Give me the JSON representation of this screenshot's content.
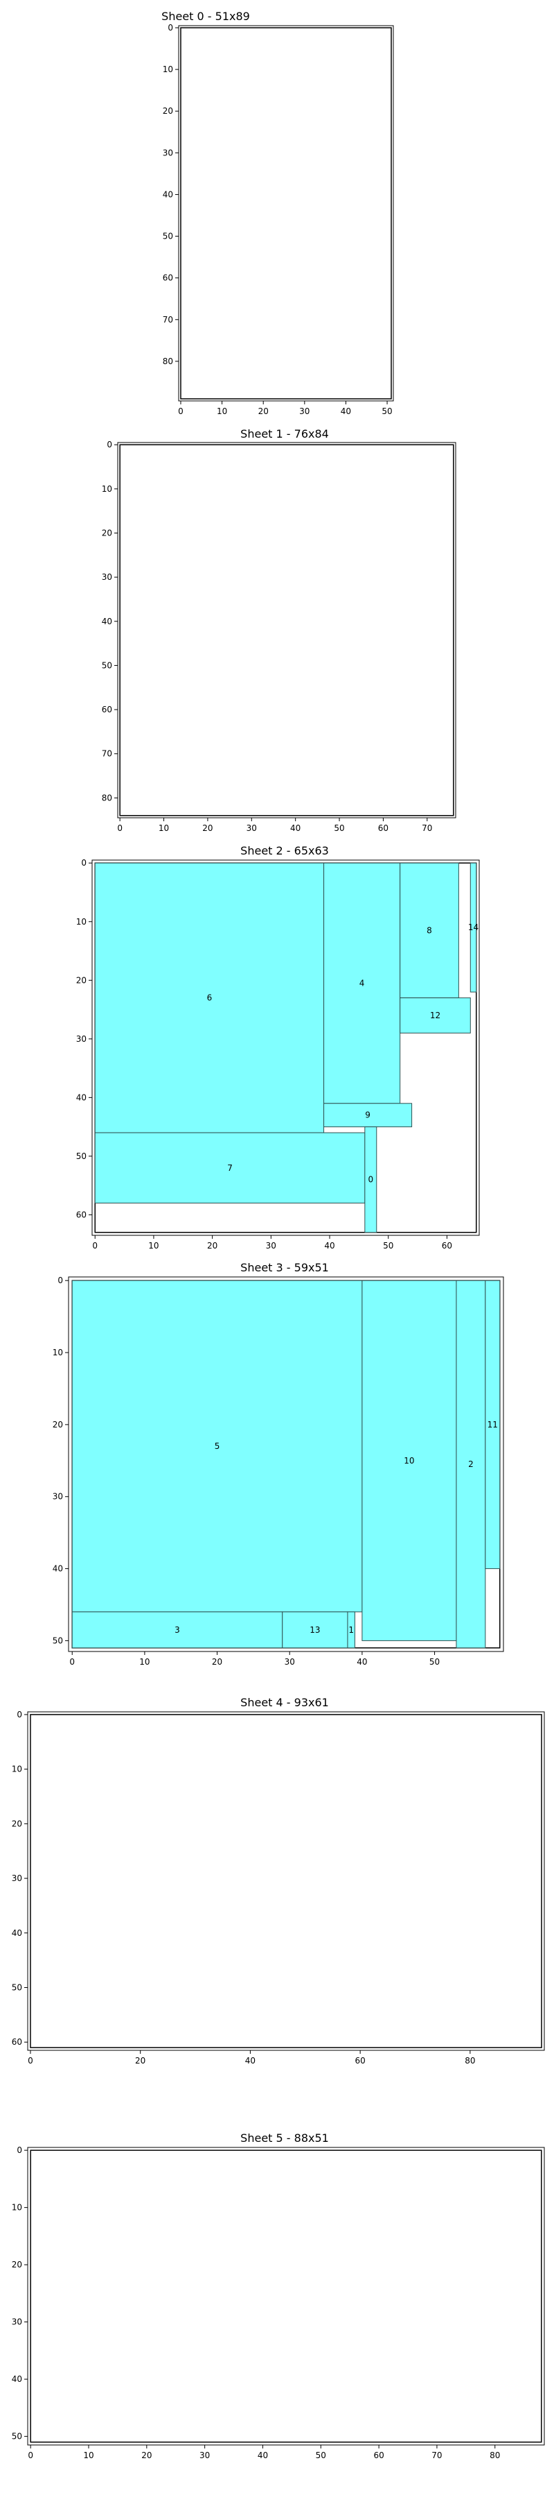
{
  "style": {
    "piece_fill": "#80ffff",
    "piece_stroke": "#2f4f4f",
    "sheet_stroke": "#000000",
    "background": "#ffffff"
  },
  "chart_data": [
    {
      "type": "bar",
      "title": "Sheet 0 - 51x89",
      "sheet": {
        "width": 51,
        "height": 89
      },
      "xlim": [
        -0.5,
        51.5
      ],
      "ylim": [
        89.5,
        -0.5
      ],
      "xticks": [
        0,
        10,
        20,
        30,
        40,
        50
      ],
      "yticks": [
        0,
        10,
        20,
        30,
        40,
        50,
        60,
        70,
        80
      ],
      "pieces": []
    },
    {
      "type": "bar",
      "title": "Sheet 1 - 76x84",
      "sheet": {
        "width": 76,
        "height": 84
      },
      "xlim": [
        -0.5,
        76.5
      ],
      "ylim": [
        84.5,
        -0.5
      ],
      "xticks": [
        0,
        10,
        20,
        30,
        40,
        50,
        60,
        70
      ],
      "yticks": [
        0,
        10,
        20,
        30,
        40,
        50,
        60,
        70,
        80
      ],
      "pieces": []
    },
    {
      "type": "bar",
      "title": "Sheet 2 - 65x63",
      "sheet": {
        "width": 65,
        "height": 63
      },
      "xlim": [
        -0.5,
        65.5
      ],
      "ylim": [
        63.5,
        -0.5
      ],
      "xticks": [
        0,
        10,
        20,
        30,
        40,
        50,
        60
      ],
      "yticks": [
        0,
        10,
        20,
        30,
        40,
        50,
        60
      ],
      "pieces": [
        {
          "label": "6",
          "x": 0,
          "y": 0,
          "w": 39,
          "h": 46
        },
        {
          "label": "4",
          "x": 39,
          "y": 0,
          "w": 13,
          "h": 41
        },
        {
          "label": "8",
          "x": 52,
          "y": 0,
          "w": 10,
          "h": 23
        },
        {
          "label": "14",
          "x": 64,
          "y": 0,
          "w": 1,
          "h": 22
        },
        {
          "label": "12",
          "x": 52,
          "y": 23,
          "w": 12,
          "h": 6
        },
        {
          "label": "9",
          "x": 39,
          "y": 41,
          "w": 15,
          "h": 4
        },
        {
          "label": "7",
          "x": 0,
          "y": 46,
          "w": 46,
          "h": 12
        },
        {
          "label": "0",
          "x": 46,
          "y": 45,
          "w": 2,
          "h": 18
        }
      ]
    },
    {
      "type": "bar",
      "title": "Sheet 3 - 59x51",
      "sheet": {
        "width": 59,
        "height": 51
      },
      "xlim": [
        -0.5,
        59.5
      ],
      "ylim": [
        51.5,
        -0.5
      ],
      "xticks": [
        0,
        10,
        20,
        30,
        40,
        50
      ],
      "yticks": [
        0,
        10,
        20,
        30,
        40,
        50
      ],
      "pieces": [
        {
          "label": "5",
          "x": 0,
          "y": 0,
          "w": 40,
          "h": 46
        },
        {
          "label": "10",
          "x": 40,
          "y": 0,
          "w": 13,
          "h": 50
        },
        {
          "label": "2",
          "x": 53,
          "y": 0,
          "w": 4,
          "h": 51
        },
        {
          "label": "11",
          "x": 57,
          "y": 0,
          "w": 2,
          "h": 40
        },
        {
          "label": "3",
          "x": 0,
          "y": 46,
          "w": 29,
          "h": 5
        },
        {
          "label": "13",
          "x": 29,
          "y": 46,
          "w": 9,
          "h": 5
        },
        {
          "label": "1",
          "x": 38,
          "y": 46,
          "w": 1,
          "h": 5
        }
      ]
    },
    {
      "type": "bar",
      "title": "Sheet 4 - 93x61",
      "sheet": {
        "width": 93,
        "height": 61
      },
      "xlim": [
        -0.5,
        93.5
      ],
      "ylim": [
        61.5,
        -0.5
      ],
      "xticks": [
        0,
        20,
        40,
        60,
        80
      ],
      "yticks": [
        0,
        10,
        20,
        30,
        40,
        50,
        60
      ],
      "pieces": []
    },
    {
      "type": "bar",
      "title": "Sheet 5 - 88x51",
      "sheet": {
        "width": 88,
        "height": 51
      },
      "xlim": [
        -0.5,
        88.5
      ],
      "ylim": [
        51.5,
        -0.5
      ],
      "xticks": [
        0,
        10,
        20,
        30,
        40,
        50,
        60,
        70,
        80
      ],
      "yticks": [
        0,
        10,
        20,
        30,
        40,
        50
      ],
      "pieces": []
    }
  ]
}
